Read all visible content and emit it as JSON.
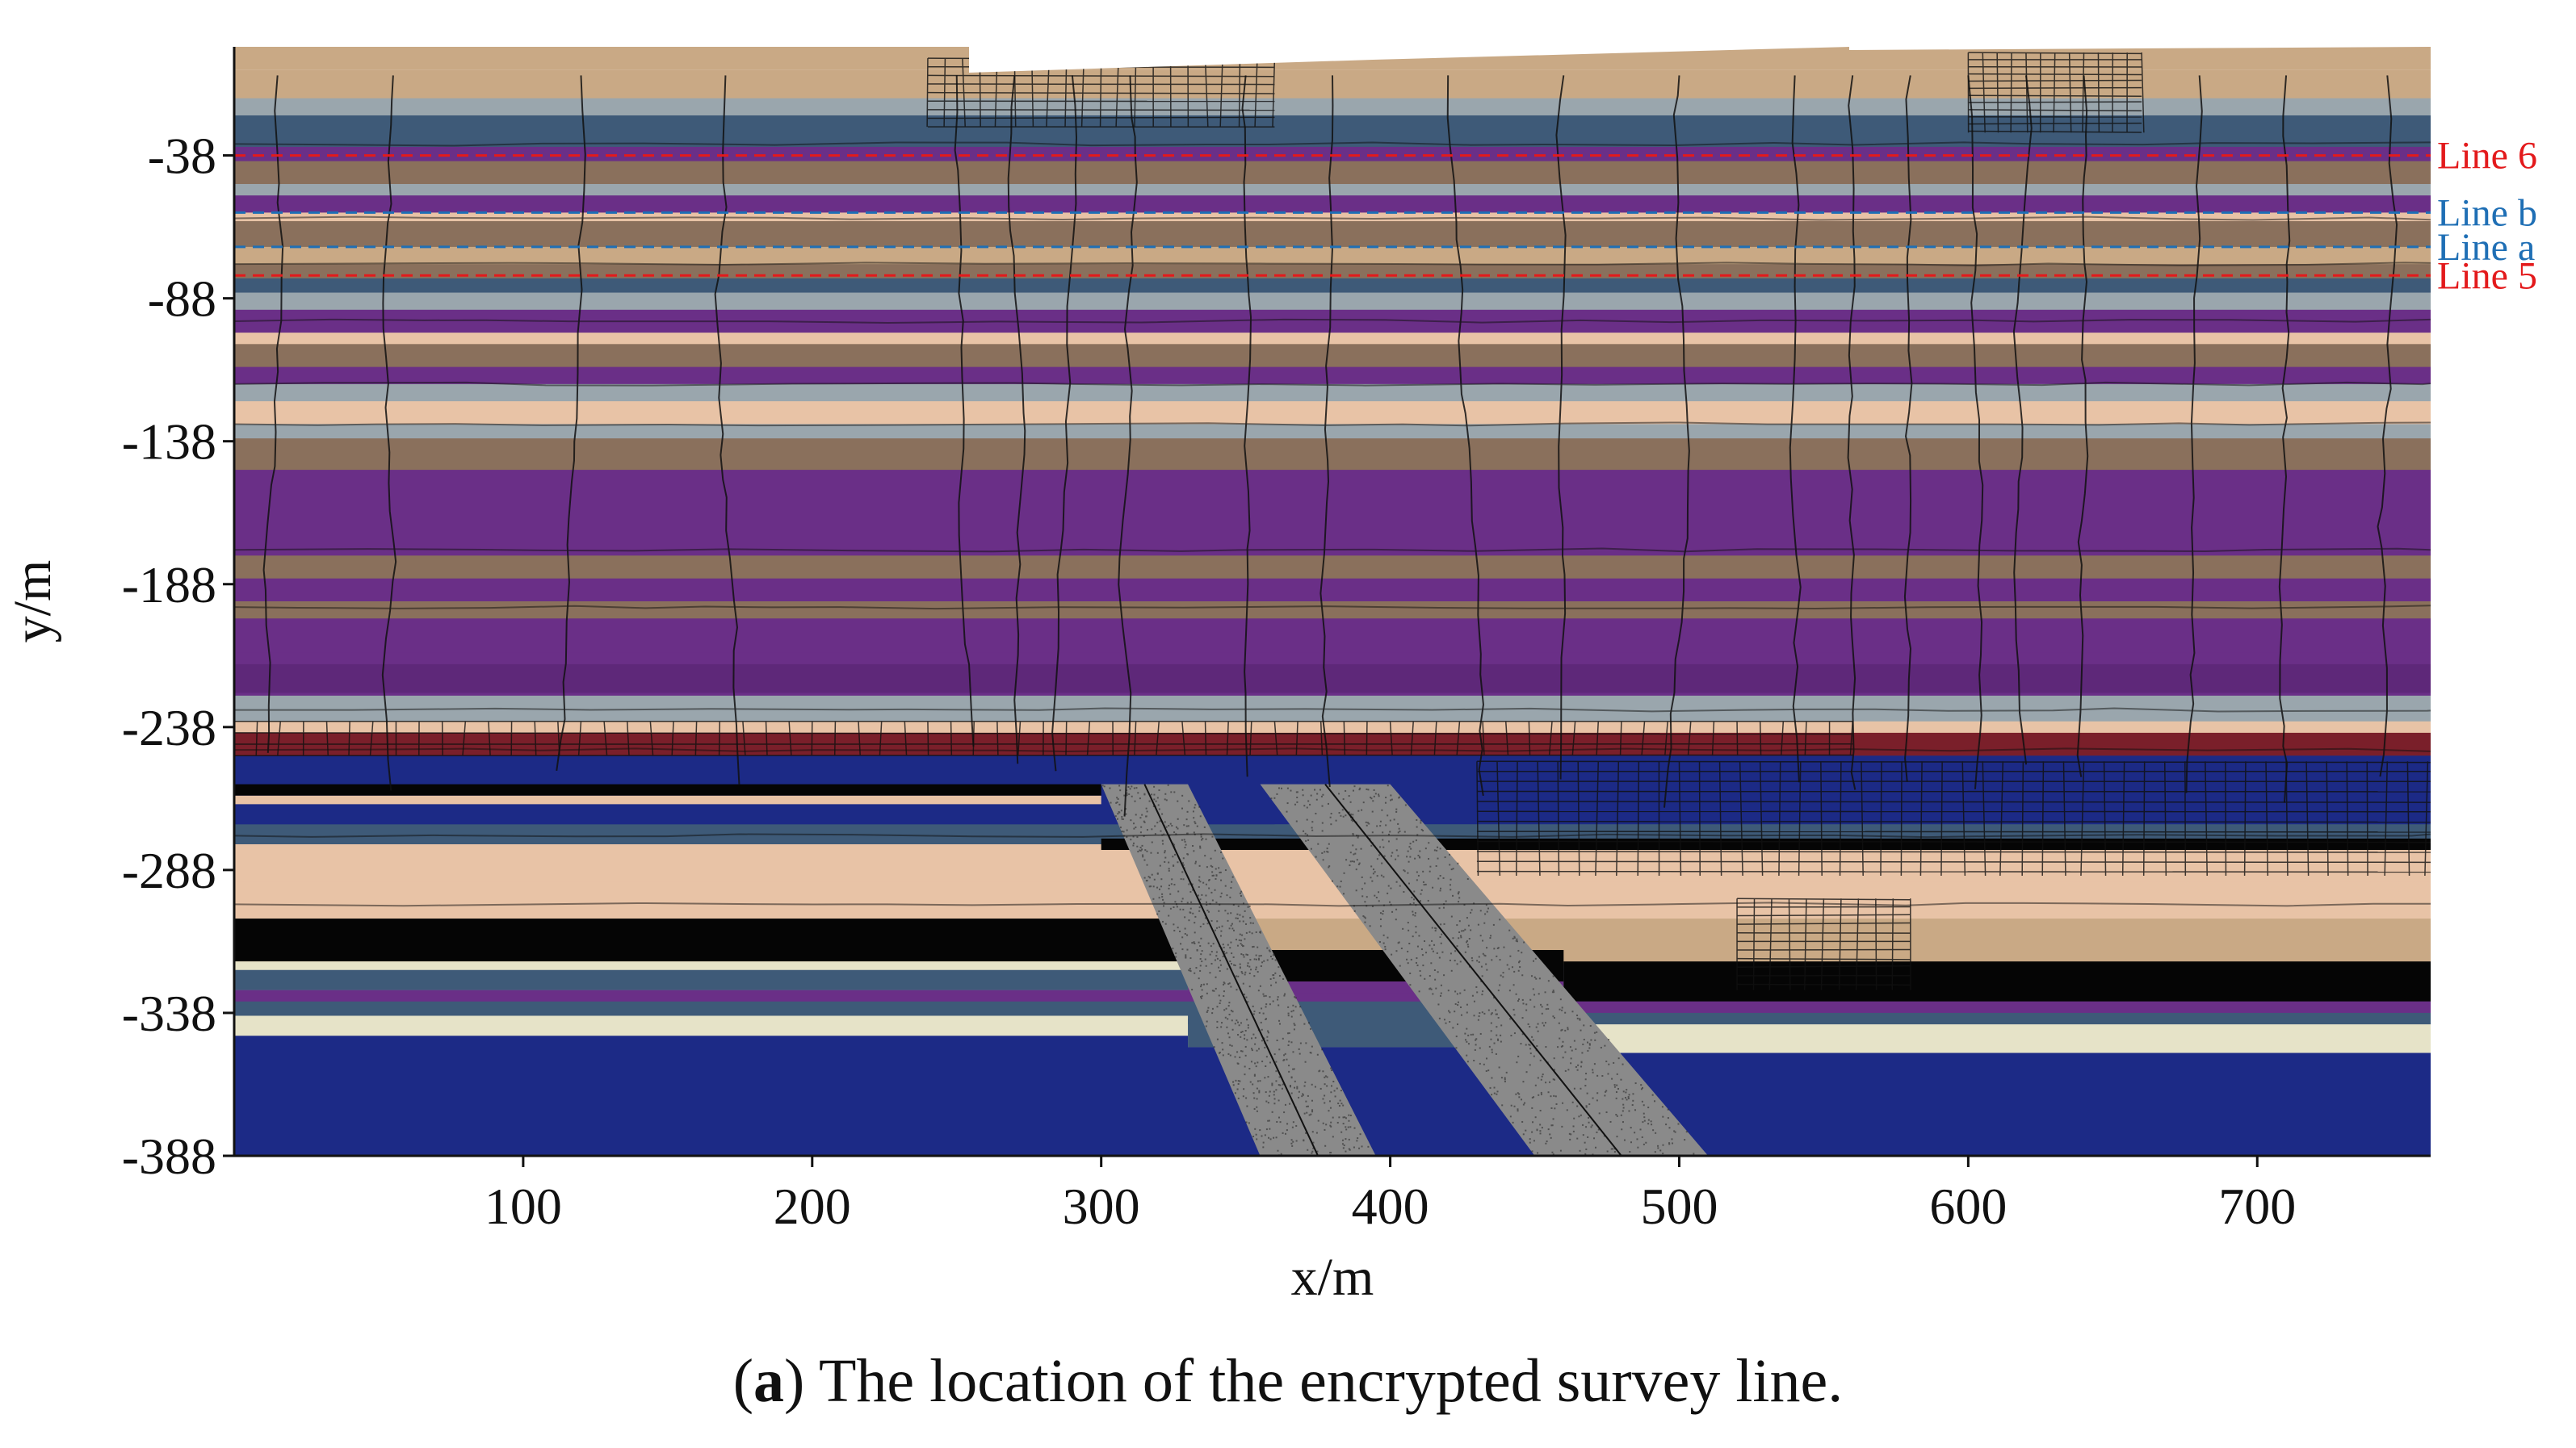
{
  "chart_data": {
    "type": "heatmap",
    "xlabel": "x/m",
    "ylabel": "y/m",
    "xlim": [
      0,
      760
    ],
    "ylim": [
      -388,
      0
    ],
    "x_ticks": [
      100,
      200,
      300,
      400,
      500,
      600,
      700
    ],
    "y_ticks": [
      -38,
      -88,
      -138,
      -188,
      -238,
      -288,
      -338,
      -388
    ],
    "survey_lines": [
      {
        "name": "Line 6",
        "y": -38,
        "color": "#e31a1c"
      },
      {
        "name": "Line b",
        "y": -58,
        "color": "#1f6fb5"
      },
      {
        "name": "Line a",
        "y": -70,
        "color": "#1f6fb5"
      },
      {
        "name": "Line 5",
        "y": -80,
        "color": "#e31a1c"
      }
    ],
    "colors": {
      "tan": "#c9a985",
      "grey": "#9aa6ad",
      "slate": "#3e5a78",
      "purple": "#6a2f87",
      "brown": "#8a705c",
      "peach": "#e8c3a6",
      "maroon": "#7a1f2a",
      "navy": "#1c2a86",
      "black": "#050505",
      "cream": "#e6e3c8",
      "fault": "#8a8a8a"
    }
  },
  "caption": {
    "label": "a",
    "text": " The location of the encrypted survey line."
  }
}
